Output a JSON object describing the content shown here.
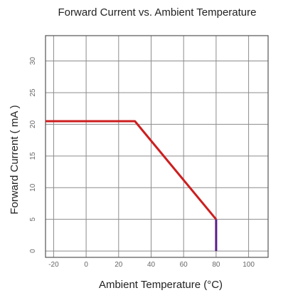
{
  "chart_data": {
    "type": "line",
    "title": "Forward Current vs. Ambient Temperature",
    "xlabel": "Ambient Temperature (°C)",
    "ylabel": "Forward Current ( mA )",
    "xlim": [
      -25,
      112
    ],
    "ylim": [
      -1,
      34
    ],
    "x_ticks": [
      -20,
      0,
      20,
      40,
      60,
      80,
      100
    ],
    "x_tick_labels": [
      "-20",
      "0",
      "20",
      "40",
      "60",
      "80",
      "100"
    ],
    "y_ticks": [
      0,
      5,
      10,
      15,
      20,
      25,
      30
    ],
    "y_tick_labels": [
      "0",
      "5",
      "10",
      "15",
      "20",
      "25",
      "30"
    ],
    "grid": true,
    "series": [
      {
        "color": "#cc1f1f",
        "x": [
          -25,
          30,
          80
        ],
        "y": [
          20.5,
          20.5,
          5
        ]
      },
      {
        "color": "#5a1f8a",
        "x": [
          80,
          80
        ],
        "y": [
          5,
          0
        ]
      }
    ]
  }
}
